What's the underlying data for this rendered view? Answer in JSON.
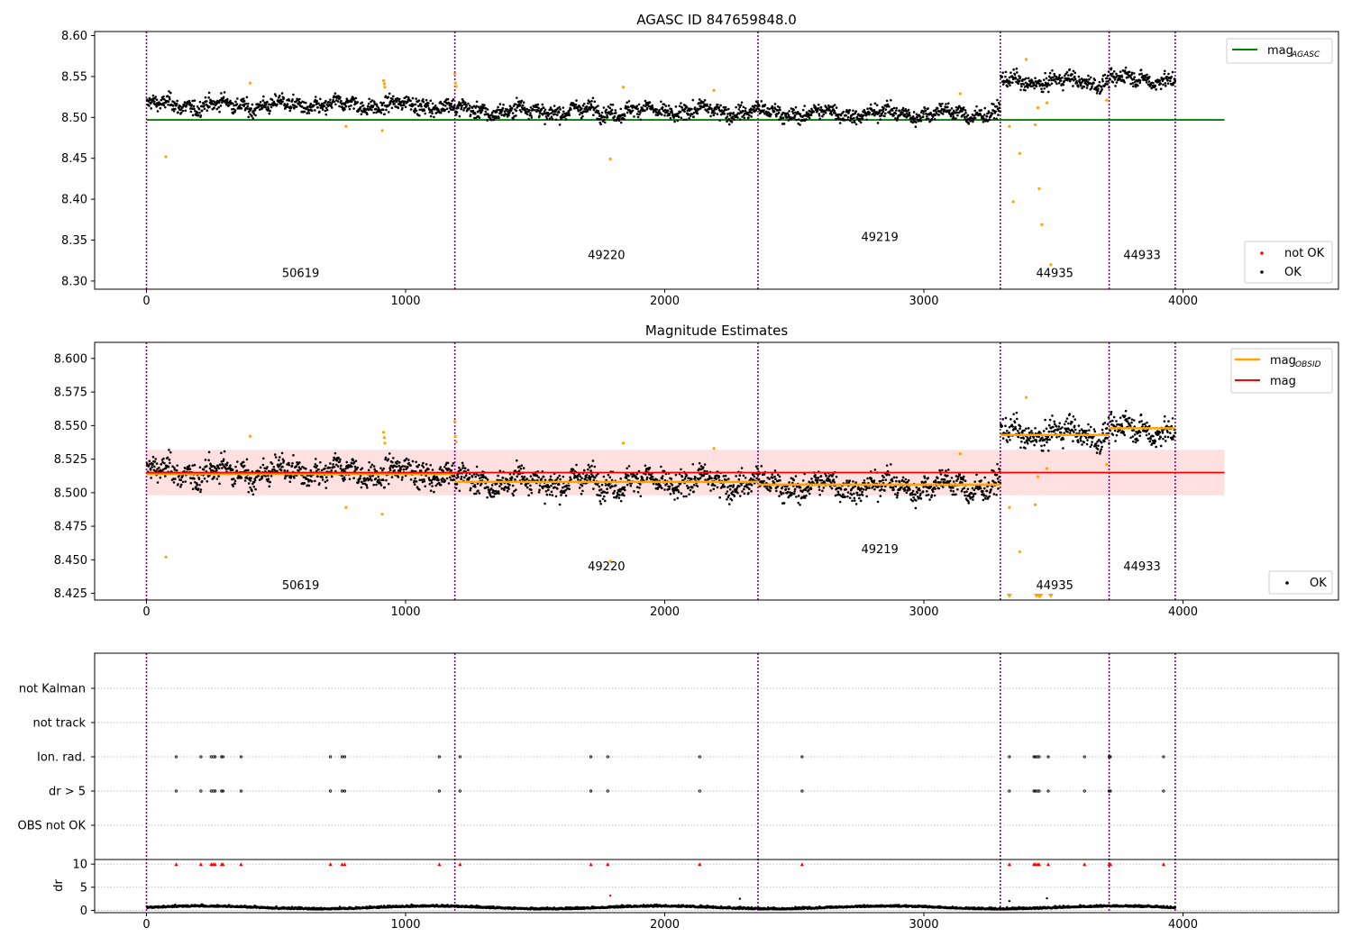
{
  "chart_data": [
    {
      "type": "scatter",
      "title": "AGASC ID 847659848.0",
      "xlim": [
        -200,
        4600
      ],
      "ylim": [
        8.29,
        8.605
      ],
      "xticks": [
        0,
        1000,
        2000,
        3000,
        4000
      ],
      "yticks": [
        8.3,
        8.35,
        8.4,
        8.45,
        8.5,
        8.55,
        8.6
      ],
      "vlines": [
        0,
        1190,
        2360,
        3295,
        3715,
        3970
      ],
      "obsid_labels": [
        {
          "text": "50619",
          "x": 595,
          "y": 8.305
        },
        {
          "text": "49220",
          "x": 1775,
          "y": 8.327
        },
        {
          "text": "49219",
          "x": 2830,
          "y": 8.349
        },
        {
          "text": "44935",
          "x": 3505,
          "y": 8.305
        },
        {
          "text": "44933",
          "x": 3842,
          "y": 8.327
        }
      ],
      "hline": {
        "name": "mag_AGASC",
        "y": 8.497,
        "x": [
          0,
          4160
        ],
        "color": "#008000"
      },
      "segment_means": [
        8.515,
        8.508,
        8.505,
        8.544,
        8.547
      ],
      "segment_noise": 0.009,
      "not_ok_points": [
        {
          "x": 75,
          "y": 8.452
        },
        {
          "x": 400,
          "y": 8.542
        },
        {
          "x": 770,
          "y": 8.489
        },
        {
          "x": 910,
          "y": 8.484
        },
        {
          "x": 915,
          "y": 8.545
        },
        {
          "x": 918,
          "y": 8.541
        },
        {
          "x": 920,
          "y": 8.537
        },
        {
          "x": 1190,
          "y": 8.553
        },
        {
          "x": 1192,
          "y": 8.542
        },
        {
          "x": 1195,
          "y": 8.538
        },
        {
          "x": 1790,
          "y": 8.449
        },
        {
          "x": 1840,
          "y": 8.537
        },
        {
          "x": 2190,
          "y": 8.533
        },
        {
          "x": 3140,
          "y": 8.529
        },
        {
          "x": 3330,
          "y": 8.489
        },
        {
          "x": 3345,
          "y": 8.397
        },
        {
          "x": 3370,
          "y": 8.456
        },
        {
          "x": 3395,
          "y": 8.571
        },
        {
          "x": 3430,
          "y": 8.491
        },
        {
          "x": 3440,
          "y": 8.512
        },
        {
          "x": 3445,
          "y": 8.413
        },
        {
          "x": 3455,
          "y": 8.369
        },
        {
          "x": 3475,
          "y": 8.518
        },
        {
          "x": 3490,
          "y": 8.32
        },
        {
          "x": 3705,
          "y": 8.521
        }
      ],
      "legend_top": {
        "label": "mag",
        "sub": "AGASC",
        "position": "upper right"
      },
      "legend_bottom": {
        "items": [
          {
            "label": "not OK",
            "color": "#ff0000"
          },
          {
            "label": "OK",
            "color": "#000000"
          }
        ],
        "position": "lower right"
      }
    },
    {
      "type": "scatter",
      "title": "Magnitude Estimates",
      "xlim": [
        -200,
        4600
      ],
      "ylim": [
        8.42,
        8.612
      ],
      "xticks": [
        0,
        1000,
        2000,
        3000,
        4000
      ],
      "yticks": [
        8.425,
        8.45,
        8.475,
        8.5,
        8.525,
        8.55,
        8.575,
        8.6
      ],
      "ytick_labels": [
        "8.425",
        "8.450",
        "8.475",
        "8.500",
        "8.525",
        "8.550",
        "8.575",
        "8.600"
      ],
      "obsid_labels": [
        {
          "text": "50619",
          "x": 595,
          "y": 8.428
        },
        {
          "text": "49220",
          "x": 1775,
          "y": 8.442
        },
        {
          "text": "49219",
          "x": 2830,
          "y": 8.455
        },
        {
          "text": "44935",
          "x": 3505,
          "y": 8.428
        },
        {
          "text": "44933",
          "x": 3842,
          "y": 8.442
        }
      ],
      "mag_line": {
        "name": "mag",
        "y": 8.515,
        "x": [
          0,
          4160
        ],
        "band": [
          8.498,
          8.532
        ],
        "color": "#ff0000"
      },
      "obsid_segments": [
        {
          "x": [
            0,
            1190
          ],
          "y": 8.514
        },
        {
          "x": [
            1190,
            2360
          ],
          "y": 8.508
        },
        {
          "x": [
            2360,
            3295
          ],
          "y": 8.506
        },
        {
          "x": [
            3295,
            3715
          ],
          "y": 8.543
        },
        {
          "x": [
            3715,
            3970
          ],
          "y": 8.548
        }
      ],
      "clipped_points_x": [
        3330,
        3435,
        3445,
        3450,
        3490
      ],
      "legend_top": {
        "items": [
          {
            "label": "mag",
            "sub": "OBSID",
            "color": "#ffa500"
          },
          {
            "label": "mag",
            "color": "#ff0000"
          }
        ],
        "position": "upper right"
      },
      "legend_bottom": {
        "items": [
          {
            "label": "OK",
            "color": "#000000"
          }
        ],
        "position": "lower right"
      }
    },
    {
      "type": "scatter",
      "xlim": [
        -200,
        4600
      ],
      "xticks": [
        0,
        1000,
        2000,
        3000,
        4000
      ],
      "flag_categories": [
        "not Kalman",
        "not track",
        "Ion. rad.",
        "dr > 5",
        "OBS not OK"
      ],
      "flag_events_x": [
        115,
        210,
        250,
        258,
        265,
        290,
        295,
        365,
        710,
        755,
        765,
        1130,
        1210,
        1715,
        1780,
        2135,
        2530,
        3330,
        3425,
        3430,
        3438,
        3445,
        3480,
        3620,
        3715,
        3720,
        3925
      ],
      "dr_ylabel": "dr",
      "dr_yticks": [
        0,
        5,
        10
      ],
      "dr_ylim": [
        -0.5,
        11
      ],
      "dr_outliers": [
        {
          "x": 1790,
          "y": 3.2
        },
        {
          "x": 2290,
          "y": 2.5
        },
        {
          "x": 3330,
          "y": 2.0
        },
        {
          "x": 3475,
          "y": 2.6
        }
      ]
    }
  ]
}
